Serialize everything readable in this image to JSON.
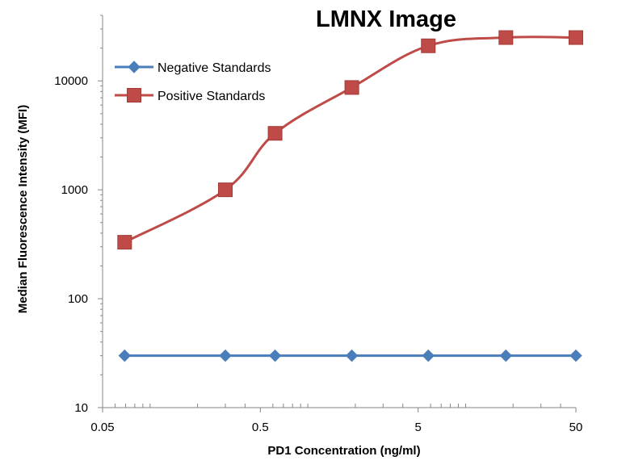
{
  "chart_data": {
    "type": "line",
    "title": "LMNX Image",
    "xlabel": "PD1 Concentration  (ng/ml)",
    "ylabel": "Median Fluorescence Intensity (MFI)",
    "x_scale": "log",
    "y_scale": "log",
    "xlim": [
      0.05,
      50
    ],
    "ylim": [
      10,
      40000
    ],
    "x_ticks": [
      "0.05",
      "0.5",
      "5",
      "50"
    ],
    "y_ticks": [
      "10",
      "100",
      "1000",
      "10000"
    ],
    "x": [
      0.069,
      0.3,
      0.62,
      1.9,
      5.8,
      18,
      50
    ],
    "series": [
      {
        "name": "Negative Standards",
        "color": "#4a7ebb",
        "marker": "diamond",
        "values": [
          30,
          30,
          30,
          30,
          30,
          30,
          30
        ]
      },
      {
        "name": "Positive Standards",
        "color": "#be4b48",
        "marker": "square",
        "values": [
          330,
          1000,
          3300,
          8700,
          21000,
          25000,
          25000
        ]
      }
    ],
    "legend_position": "top-left",
    "grid": false
  }
}
